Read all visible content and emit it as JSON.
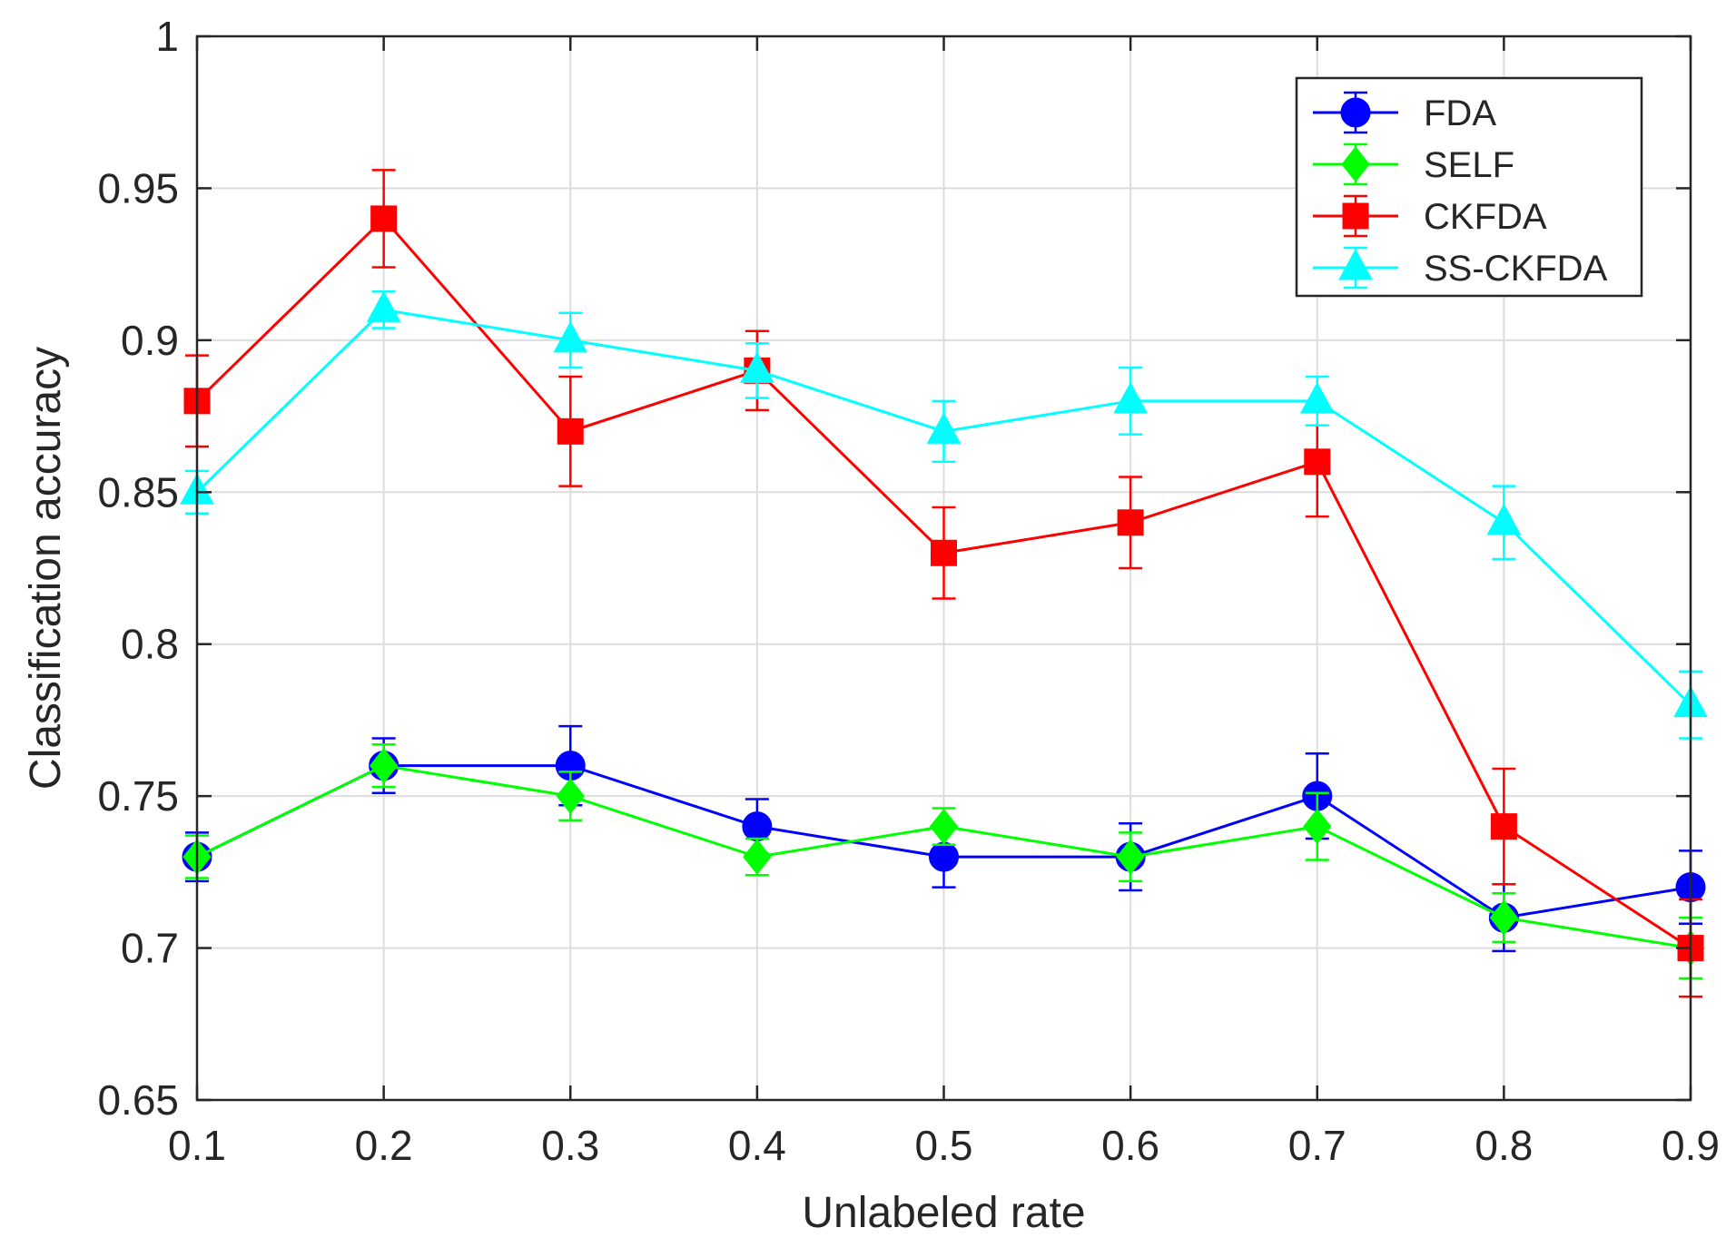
{
  "chart_data": {
    "type": "line",
    "title": "",
    "xlabel": "Unlabeled rate",
    "ylabel": "Classification accuracy",
    "xlim": [
      0.1,
      0.9
    ],
    "ylim": [
      0.65,
      1.0
    ],
    "x": [
      0.1,
      0.2,
      0.3,
      0.4,
      0.5,
      0.6,
      0.7,
      0.8,
      0.9
    ],
    "x_tick_labels": [
      "0.1",
      "0.2",
      "0.3",
      "0.4",
      "0.5",
      "0.6",
      "0.7",
      "0.8",
      "0.9"
    ],
    "y_ticks": [
      0.65,
      0.7,
      0.75,
      0.8,
      0.85,
      0.9,
      0.95,
      1.0
    ],
    "y_tick_labels": [
      "0.65",
      "0.7",
      "0.75",
      "0.8",
      "0.85",
      "0.9",
      "0.95",
      "1"
    ],
    "grid": true,
    "error_bars": true,
    "legend_position": "top-right",
    "series": [
      {
        "name": "FDA",
        "color": "#0000ff",
        "marker": "circle",
        "values": [
          0.73,
          0.76,
          0.76,
          0.74,
          0.73,
          0.73,
          0.75,
          0.71,
          0.72
        ],
        "errors": [
          0.008,
          0.009,
          0.013,
          0.009,
          0.01,
          0.011,
          0.014,
          0.011,
          0.012
        ]
      },
      {
        "name": "SELF",
        "color": "#00ff00",
        "marker": "diamond",
        "values": [
          0.73,
          0.76,
          0.75,
          0.73,
          0.74,
          0.73,
          0.74,
          0.71,
          0.7
        ],
        "errors": [
          0.007,
          0.007,
          0.008,
          0.006,
          0.006,
          0.008,
          0.011,
          0.008,
          0.01
        ]
      },
      {
        "name": "CKFDA",
        "color": "#ff0000",
        "marker": "square",
        "values": [
          0.88,
          0.94,
          0.87,
          0.89,
          0.83,
          0.84,
          0.86,
          0.74,
          0.7
        ],
        "errors": [
          0.015,
          0.016,
          0.018,
          0.013,
          0.015,
          0.015,
          0.018,
          0.019,
          0.016
        ]
      },
      {
        "name": "SS-CKFDA",
        "color": "#00ffff",
        "marker": "triangle",
        "values": [
          0.85,
          0.91,
          0.9,
          0.89,
          0.87,
          0.88,
          0.88,
          0.84,
          0.78
        ],
        "errors": [
          0.007,
          0.006,
          0.009,
          0.009,
          0.01,
          0.011,
          0.008,
          0.012,
          0.011
        ]
      }
    ]
  }
}
